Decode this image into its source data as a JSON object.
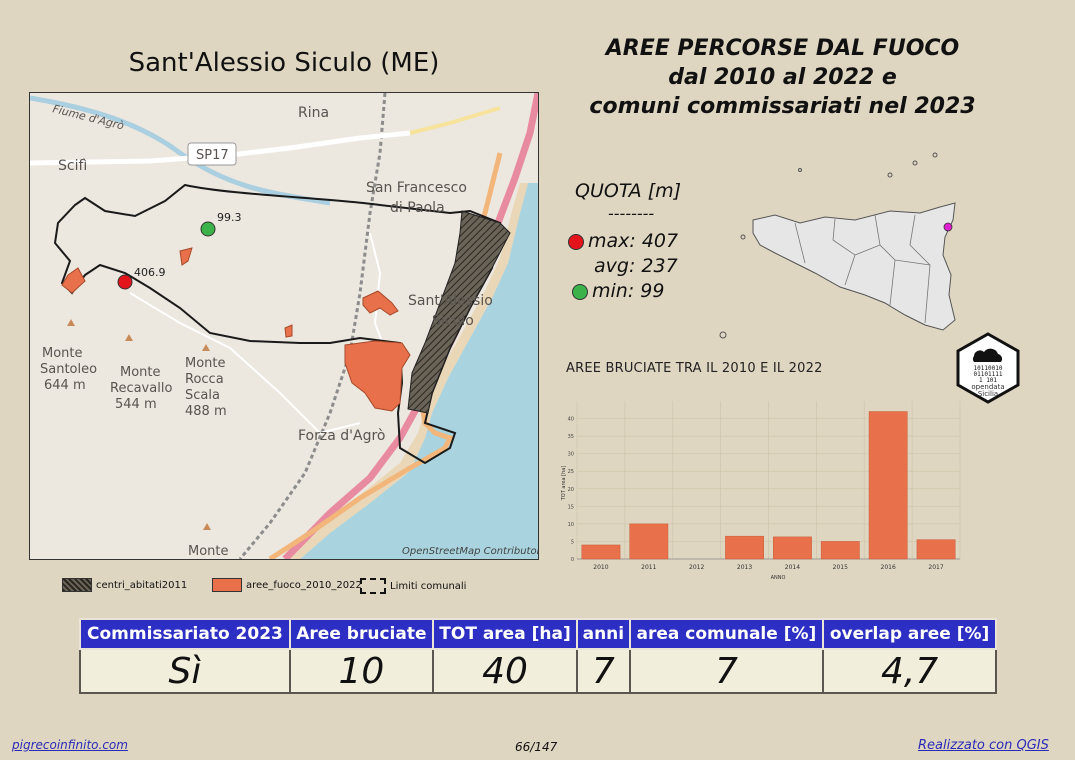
{
  "municipality": "Sant'Alessio Siculo (ME)",
  "title_lines": [
    "AREE PERCORSE DAL FUOCO",
    "dal 2010 al 2022 e",
    "comuni commissariati nel 2023"
  ],
  "map": {
    "labels": {
      "river": "Fiume d'Agrò",
      "rina": "Rina",
      "scifi": "Scifì",
      "sp17": "SP17",
      "san_francesco_1": "San Francesco",
      "san_francesco_2": "di Paola",
      "sant_alessio_1": "Sant'Alessio",
      "sant_alessio_2": "Siculo",
      "santoleo_1": "Monte",
      "santoleo_2": "Santoleo",
      "santoleo_3": "644 m",
      "recavallo_1": "Monte",
      "recavallo_2": "Recavallo",
      "recavallo_3": "544 m",
      "rocca_1": "Monte",
      "rocca_2": "Rocca",
      "rocca_3": "Scala",
      "rocca_4": "488 m",
      "forza": "Forza d'Agrò",
      "monte_bottom": "Monte",
      "attribution": "OpenStreetMap Contributor",
      "max_point": "406.9",
      "min_point": "99.3"
    }
  },
  "legend": {
    "centri": "centri_abitati2011",
    "aree": "aree_fuoco_2010_2022",
    "limiti": "Limiti comunali"
  },
  "quota": {
    "title": "QUOTA [m]",
    "separator": "--------",
    "max": "max: 407",
    "avg": "avg: 237",
    "min": "min: 99"
  },
  "logo": {
    "line1": "10110010",
    "line2": "01101111",
    "line3": "1  101",
    "text1": "opendata",
    "text2": "Sicilia"
  },
  "chart_title": "AREE BRUCIATE TRA IL 2010 E IL 2022",
  "chart_data": {
    "type": "bar",
    "title": "AREE BRUCIATE TRA IL 2010 E IL 2022",
    "xlabel": "ANNO",
    "ylabel": "TOT area [ha]",
    "categories": [
      "2010",
      "2011",
      "2012",
      "2013",
      "2014",
      "2015",
      "2016",
      "2017"
    ],
    "values": [
      4,
      10,
      0,
      6.5,
      6.3,
      5,
      42,
      5.5
    ],
    "ylim": [
      0,
      45
    ],
    "yticks": [
      0,
      5,
      10,
      15,
      20,
      25,
      30,
      35,
      40
    ],
    "bar_color": "#e8704a",
    "grid": true
  },
  "table": {
    "headers": [
      "Commissariato 2023",
      "Aree bruciate",
      "TOT area [ha]",
      "anni",
      "area comunale [%]",
      "overlap aree [%]"
    ],
    "values": [
      "Sì",
      "10",
      "40",
      "7",
      "7",
      "4,7"
    ]
  },
  "footer": {
    "left": "pigrecoinfinito.com",
    "center": "66/147",
    "right": "Realizzato con QGIS"
  },
  "colors": {
    "background": "#dfd6c1",
    "header_blue": "#2d2fc4",
    "fire_area": "#e8704a",
    "sea": "#a9d3de",
    "max_dot": "#e3141c",
    "min_dot": "#3bb34a",
    "sicily_point": "#e020d0"
  }
}
